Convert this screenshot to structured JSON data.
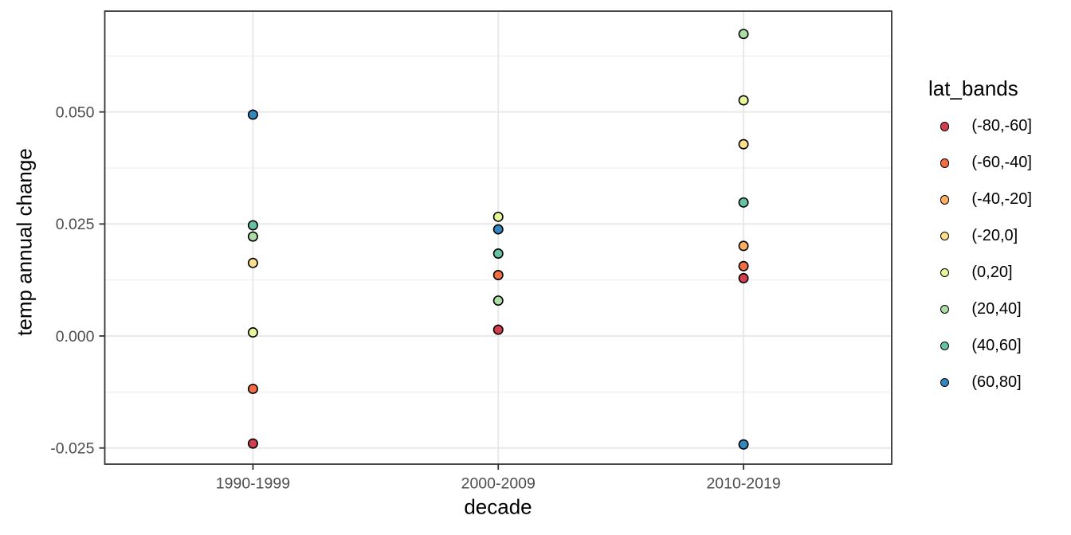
{
  "figure": {
    "background": "#FFFFFF",
    "panel_fill": "#FFFFFF",
    "panel_border_color": "#333333",
    "grid_major_color": "#E8E8E8",
    "grid_minor_color": "#EFEFEF",
    "tick_color": "#333333",
    "tick_label_color": "#4D4D4D",
    "point_outline_color": "#000000"
  },
  "chart_data": {
    "type": "scatter",
    "title": "",
    "xlabel": "decade",
    "ylabel": "temp annual change",
    "categories": [
      "1990-1999",
      "2000-2009",
      "2010-2019"
    ],
    "ylim": [
      -0.0286,
      0.0725
    ],
    "grid": true,
    "y_ticks": [
      {
        "value": -0.025,
        "label": "-0.025"
      },
      {
        "value": 0.0,
        "label": "0.000"
      },
      {
        "value": 0.025,
        "label": "0.025"
      },
      {
        "value": 0.05,
        "label": "0.050"
      }
    ],
    "y_minor": [
      -0.0125,
      0.0125,
      0.0375,
      0.0625
    ],
    "legend": {
      "title": "lat_bands",
      "position": "right"
    },
    "series": [
      {
        "name": "(-80,-60]",
        "color": "#D53E4F",
        "points": [
          {
            "x": "1990-1999",
            "y": -0.024
          },
          {
            "x": "2000-2009",
            "y": 0.0014
          },
          {
            "x": "2010-2019",
            "y": 0.0129
          }
        ]
      },
      {
        "name": "(-60,-40]",
        "color": "#F46D43",
        "points": [
          {
            "x": "1990-1999",
            "y": -0.0118
          },
          {
            "x": "2000-2009",
            "y": 0.0136
          },
          {
            "x": "2010-2019",
            "y": 0.0156
          }
        ]
      },
      {
        "name": "(-40,-20]",
        "color": "#FDAE61",
        "points": [
          {
            "x": "2010-2019",
            "y": 0.0201
          }
        ]
      },
      {
        "name": "(-20,0]",
        "color": "#FEE08B",
        "points": [
          {
            "x": "1990-1999",
            "y": 0.0163
          },
          {
            "x": "2010-2019",
            "y": 0.0428
          }
        ]
      },
      {
        "name": "(0,20]",
        "color": "#E6F598",
        "points": [
          {
            "x": "1990-1999",
            "y": 0.0008
          },
          {
            "x": "2000-2009",
            "y": 0.0266
          },
          {
            "x": "2010-2019",
            "y": 0.0526
          }
        ]
      },
      {
        "name": "(20,40]",
        "color": "#ABDDA4",
        "points": [
          {
            "x": "1990-1999",
            "y": 0.0222
          },
          {
            "x": "2000-2009",
            "y": 0.0079
          },
          {
            "x": "2010-2019",
            "y": 0.0674
          }
        ]
      },
      {
        "name": "(40,60]",
        "color": "#66C2A5",
        "points": [
          {
            "x": "1990-1999",
            "y": 0.0247
          },
          {
            "x": "2000-2009",
            "y": 0.0184
          },
          {
            "x": "2010-2019",
            "y": 0.0298
          }
        ]
      },
      {
        "name": "(60,80]",
        "color": "#3288BD",
        "points": [
          {
            "x": "1990-1999",
            "y": 0.0494
          },
          {
            "x": "2000-2009",
            "y": 0.0238
          },
          {
            "x": "2010-2019",
            "y": -0.0242
          }
        ]
      }
    ]
  }
}
